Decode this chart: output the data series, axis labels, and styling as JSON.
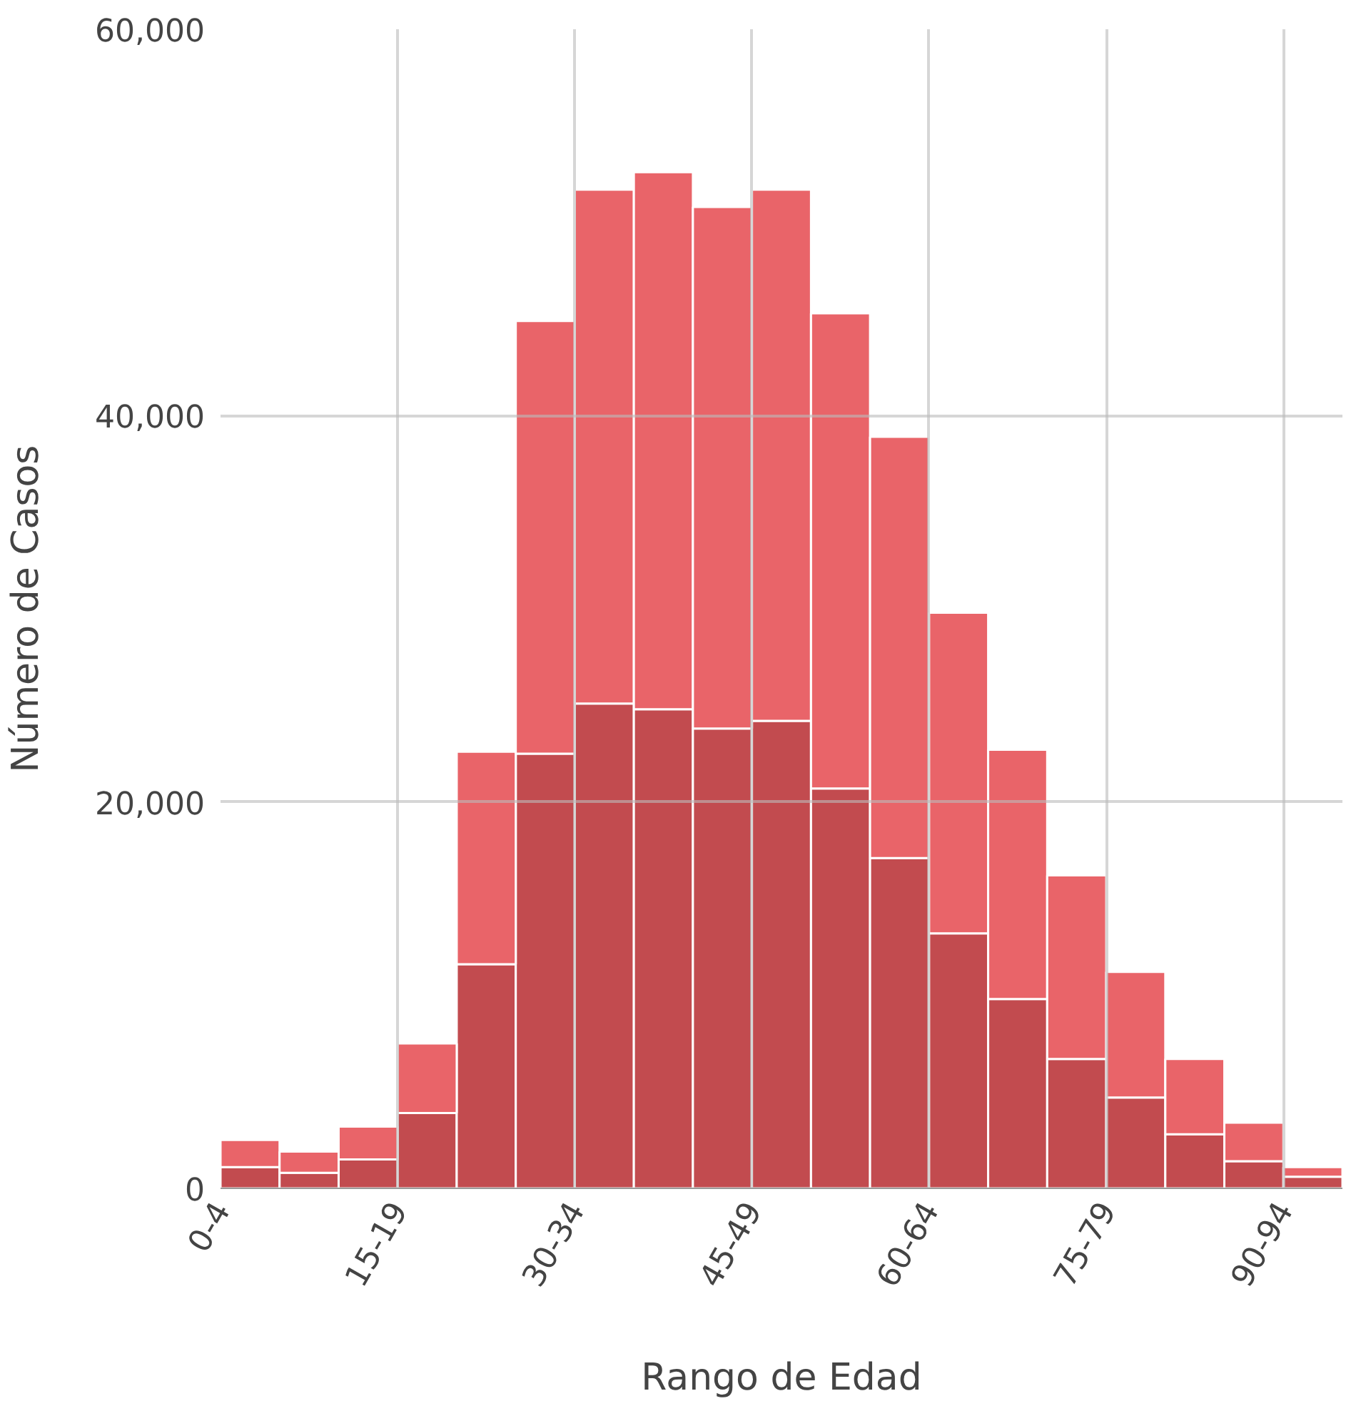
{
  "chart_data": {
    "type": "bar",
    "xlabel": "Rango de Edad",
    "ylabel": "Número de Casos",
    "categories": [
      "0-4",
      null,
      null,
      "15-19",
      null,
      null,
      "30-34",
      null,
      null,
      "45-49",
      null,
      null,
      "60-64",
      null,
      null,
      "75-79",
      null,
      null,
      "90-94"
    ],
    "series": [
      {
        "color": "#c24b4f",
        "values": [
          1100,
          800,
          1500,
          3900,
          11600,
          22500,
          25100,
          24800,
          23800,
          24200,
          20700,
          17100,
          13200,
          9800,
          6700,
          4700,
          2800,
          1400,
          600
        ]
      },
      {
        "color": "#e96469",
        "values": [
          1400,
          1100,
          1700,
          3600,
          11000,
          22400,
          26600,
          27800,
          27000,
          27500,
          24600,
          21800,
          16600,
          12900,
          9500,
          6500,
          3900,
          2000,
          500
        ]
      }
    ],
    "stacked": true,
    "ylim": [
      0,
      60000
    ],
    "yticks": [
      {
        "value": 0,
        "label": "0"
      },
      {
        "value": 20000,
        "label": "20,000"
      },
      {
        "value": 40000,
        "label": "40,000"
      },
      {
        "value": 60000,
        "label": "60,000"
      }
    ],
    "grid": true
  }
}
